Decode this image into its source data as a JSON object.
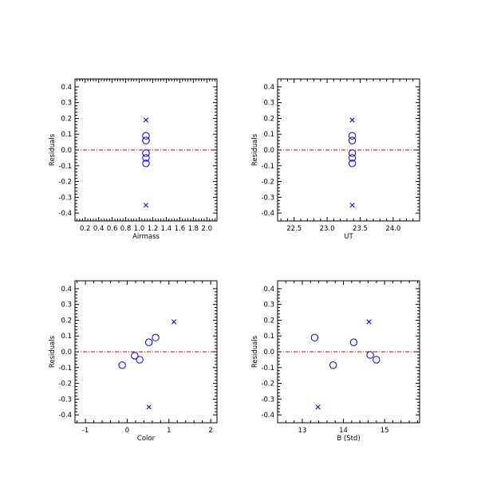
{
  "colors": {
    "frame": "#000000",
    "marker": "#0000cc",
    "zero_line": "#cc0000"
  },
  "chart_data": [
    {
      "type": "scatter",
      "xlabel": "Airmass",
      "ylabel": "Residuals",
      "xlim": [
        0.05,
        2.15
      ],
      "ylim": [
        -0.45,
        0.45
      ],
      "xticks": [
        "0.2",
        "0.4",
        "0.6",
        "0.8",
        "1.0",
        "1.2",
        "1.4",
        "1.6",
        "1.8",
        "2.0"
      ],
      "yticks": [
        "0.4",
        "0.3",
        "0.2",
        "0.1",
        "0.0",
        "-0.1",
        "-0.2",
        "-0.3",
        "-0.4"
      ],
      "zero_line": 0,
      "series": [
        {
          "marker": "circle",
          "points": [
            [
              1.1,
              0.09
            ],
            [
              1.1,
              0.06
            ],
            [
              1.1,
              -0.02
            ],
            [
              1.1,
              -0.05
            ],
            [
              1.1,
              -0.085
            ]
          ]
        },
        {
          "marker": "cross",
          "points": [
            [
              1.1,
              0.19
            ],
            [
              1.1,
              -0.35
            ]
          ]
        }
      ]
    },
    {
      "type": "scatter",
      "xlabel": "UT",
      "ylabel": "Residuals",
      "xlim": [
        22.25,
        24.4
      ],
      "ylim": [
        -0.45,
        0.45
      ],
      "xticks": [
        "22.5",
        "23.0",
        "23.5",
        "24.0"
      ],
      "yticks": [
        "0.4",
        "0.3",
        "0.2",
        "0.1",
        "0.0",
        "-0.1",
        "-0.2",
        "-0.3",
        "-0.4"
      ],
      "zero_line": 0,
      "series": [
        {
          "marker": "circle",
          "points": [
            [
              23.38,
              0.09
            ],
            [
              23.38,
              0.06
            ],
            [
              23.38,
              -0.02
            ],
            [
              23.38,
              -0.05
            ],
            [
              23.38,
              -0.085
            ]
          ]
        },
        {
          "marker": "cross",
          "points": [
            [
              23.38,
              0.19
            ],
            [
              23.38,
              -0.35
            ]
          ]
        }
      ]
    },
    {
      "type": "scatter",
      "xlabel": "Color",
      "ylabel": "Residuals",
      "xlim": [
        -1.25,
        2.15
      ],
      "ylim": [
        -0.45,
        0.45
      ],
      "xticks": [
        "-1",
        "0",
        "1",
        "2"
      ],
      "yticks": [
        "0.4",
        "0.3",
        "0.2",
        "0.1",
        "0.0",
        "-0.1",
        "-0.2",
        "-0.3",
        "-0.4"
      ],
      "zero_line": 0,
      "series": [
        {
          "marker": "circle",
          "points": [
            [
              -0.12,
              -0.085
            ],
            [
              0.18,
              -0.025
            ],
            [
              0.3,
              -0.05
            ],
            [
              0.52,
              0.06
            ],
            [
              0.68,
              0.09
            ]
          ]
        },
        {
          "marker": "cross",
          "points": [
            [
              1.12,
              0.19
            ],
            [
              0.52,
              -0.35
            ]
          ]
        }
      ]
    },
    {
      "type": "scatter",
      "xlabel": "B (Std)",
      "ylabel": "Residuals",
      "xlim": [
        12.4,
        15.85
      ],
      "ylim": [
        -0.45,
        0.45
      ],
      "xticks": [
        "13",
        "14",
        "15"
      ],
      "yticks": [
        "0.4",
        "0.3",
        "0.2",
        "0.1",
        "0.0",
        "-0.1",
        "-0.2",
        "-0.3",
        "-0.4"
      ],
      "zero_line": 0,
      "series": [
        {
          "marker": "circle",
          "points": [
            [
              13.3,
              0.09
            ],
            [
              13.75,
              -0.085
            ],
            [
              14.25,
              0.06
            ],
            [
              14.65,
              -0.02
            ],
            [
              14.8,
              -0.05
            ]
          ]
        },
        {
          "marker": "cross",
          "points": [
            [
              14.62,
              0.19
            ],
            [
              13.38,
              -0.35
            ]
          ]
        }
      ]
    }
  ]
}
